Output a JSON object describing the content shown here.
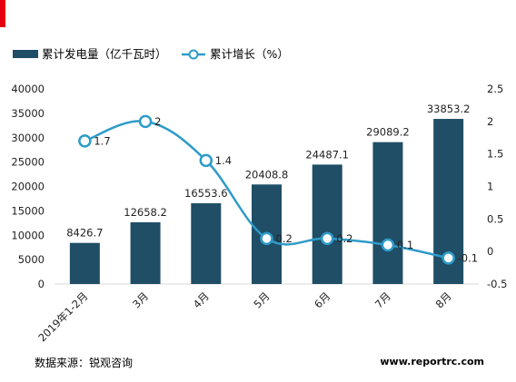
{
  "colors": {
    "bar": "#1f4e66",
    "line": "#2e9bc8",
    "marker_fill": "#ffffff",
    "accent": "#e60012",
    "grid": "#d9d9d9",
    "text": "#222222"
  },
  "legend": {
    "bar_label": "累计发电量（亿千瓦时）",
    "line_label": "累计增长（%）",
    "placement": "top-left"
  },
  "footer": {
    "source": "数据来源：锐观咨询",
    "url": "www.reportrc.com"
  },
  "chart_data": {
    "type": "bar",
    "categories": [
      "2019年1-2月",
      "3月",
      "4月",
      "5月",
      "6月",
      "7月",
      "8月"
    ],
    "series": [
      {
        "name": "累计发电量（亿千瓦时）",
        "type": "bar",
        "axis": "left",
        "values": [
          8426.7,
          12658.2,
          16553.6,
          20408.8,
          24487.1,
          29089.2,
          33853.2
        ],
        "labels": [
          "8426.7",
          "12658.2",
          "16553.6",
          "20408.8",
          "24487.1",
          "29089.2",
          "33853.2"
        ]
      },
      {
        "name": "累计增长（%）",
        "type": "line",
        "axis": "right",
        "values": [
          1.7,
          2,
          1.4,
          0.2,
          0.2,
          0.1,
          -0.1
        ],
        "labels": [
          "1.7",
          "2",
          "1.4",
          "0.2",
          "0.2",
          "0.1",
          "-0.1"
        ]
      }
    ],
    "y_left": {
      "min": 0,
      "max": 40000,
      "ticks": [
        "0",
        "5000",
        "10000",
        "15000",
        "20000",
        "25000",
        "30000",
        "35000",
        "40000"
      ]
    },
    "y_right": {
      "min": -0.5,
      "max": 2.5,
      "ticks": [
        "-0.5",
        "0",
        "0.5",
        "1",
        "1.5",
        "2",
        "2.5"
      ]
    },
    "grid": false
  }
}
